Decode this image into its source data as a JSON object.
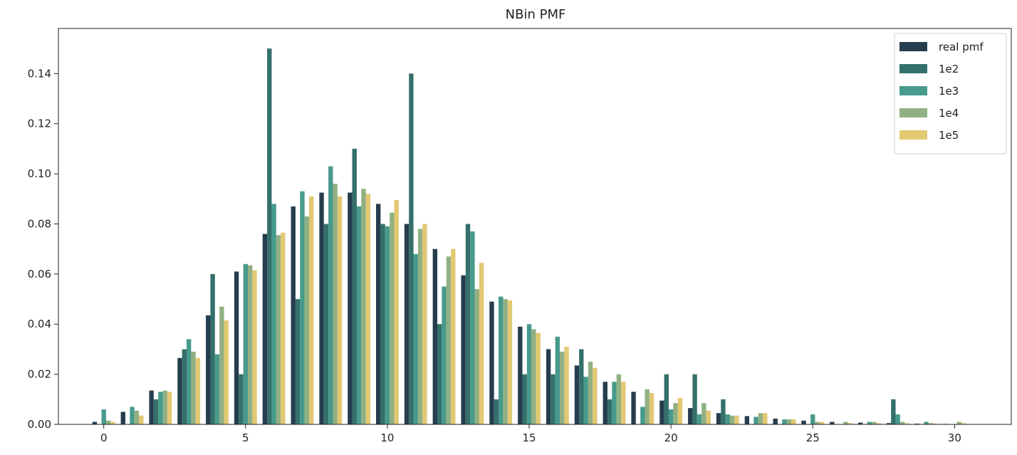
{
  "chart_data": {
    "type": "bar",
    "title": "NBin PMF",
    "xlabel": "",
    "ylabel": "",
    "xlim": [
      -1.6,
      32.0
    ],
    "ylim": [
      0,
      0.158
    ],
    "xticks": [
      0,
      5,
      10,
      15,
      20,
      25,
      30
    ],
    "xtick_labels": [
      "0",
      "5",
      "10",
      "15",
      "20",
      "25",
      "30"
    ],
    "yticks": [
      0.0,
      0.02,
      0.04,
      0.06,
      0.08,
      0.1,
      0.12,
      0.14
    ],
    "ytick_labels": [
      "0.00",
      "0.02",
      "0.04",
      "0.06",
      "0.08",
      "0.10",
      "0.12",
      "0.14"
    ],
    "grid": false,
    "legend_position": "top-right",
    "x": [
      0,
      1,
      2,
      3,
      4,
      5,
      6,
      7,
      8,
      9,
      10,
      11,
      12,
      13,
      14,
      15,
      16,
      17,
      18,
      19,
      20,
      21,
      22,
      23,
      24,
      25,
      26,
      27,
      28,
      29,
      30
    ],
    "series": [
      {
        "name": "real pmf",
        "color": "#263d4d",
        "values": [
          0.001,
          0.005,
          0.0135,
          0.0265,
          0.0435,
          0.061,
          0.076,
          0.087,
          0.0925,
          0.0925,
          0.088,
          0.08,
          0.07,
          0.0595,
          0.049,
          0.039,
          0.03,
          0.0235,
          0.017,
          0.013,
          0.0095,
          0.0065,
          0.0045,
          0.0033,
          0.0023,
          0.0015,
          0.001,
          0.0007,
          0.0005,
          0.0003,
          0.0002
        ]
      },
      {
        "name": "1e2",
        "color": "#34706b",
        "values": [
          0,
          0,
          0.01,
          0.03,
          0.06,
          0.02,
          0.15,
          0.05,
          0.08,
          0.11,
          0.08,
          0.14,
          0.04,
          0.08,
          0.01,
          0.02,
          0.02,
          0.03,
          0.01,
          0,
          0.02,
          0.02,
          0.01,
          0,
          0,
          0,
          0,
          0,
          0.01,
          0,
          0
        ]
      },
      {
        "name": "1e3",
        "color": "#479a8c",
        "values": [
          0.006,
          0.007,
          0.013,
          0.034,
          0.028,
          0.064,
          0.088,
          0.093,
          0.103,
          0.087,
          0.079,
          0.068,
          0.055,
          0.077,
          0.051,
          0.04,
          0.035,
          0.019,
          0.017,
          0.007,
          0.006,
          0.004,
          0.004,
          0.003,
          0.002,
          0.004,
          0,
          0.001,
          0.004,
          0.001,
          0
        ]
      },
      {
        "name": "1e4",
        "color": "#91b083",
        "values": [
          0.0015,
          0.0055,
          0.0135,
          0.029,
          0.047,
          0.0635,
          0.0755,
          0.083,
          0.096,
          0.094,
          0.0845,
          0.078,
          0.067,
          0.054,
          0.05,
          0.038,
          0.029,
          0.025,
          0.02,
          0.014,
          0.0085,
          0.0085,
          0.0035,
          0.0045,
          0.002,
          0.001,
          0.001,
          0.001,
          0.001,
          0.0005,
          0.001
        ]
      },
      {
        "name": "1e5",
        "color": "#e3c873",
        "values": [
          0.001,
          0.0035,
          0.013,
          0.0265,
          0.0415,
          0.0615,
          0.0765,
          0.091,
          0.091,
          0.092,
          0.0895,
          0.08,
          0.07,
          0.0645,
          0.0495,
          0.0365,
          0.031,
          0.0225,
          0.017,
          0.0125,
          0.0105,
          0.0055,
          0.0035,
          0.0045,
          0.002,
          0.001,
          0.0005,
          0.0005,
          0.0005,
          0.0003,
          0.0005
        ]
      }
    ]
  }
}
